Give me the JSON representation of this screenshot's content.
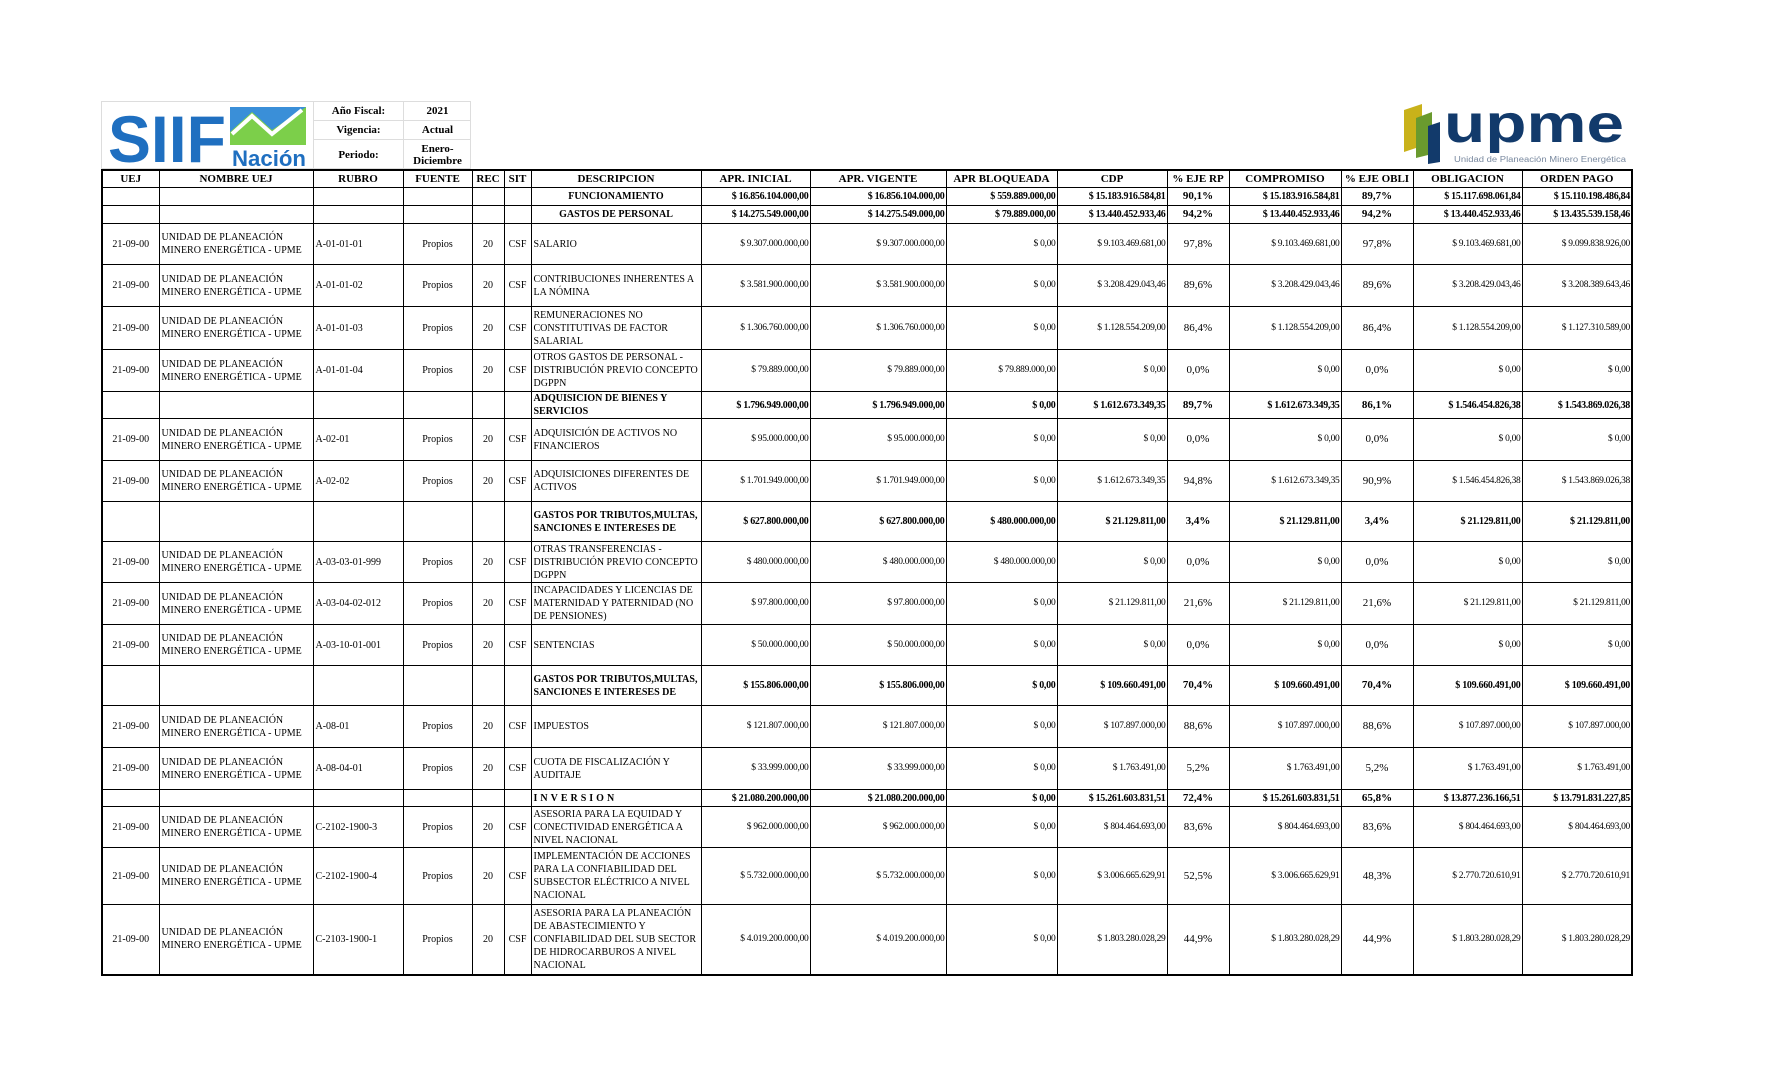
{
  "header": {
    "siif_logo_text": "SIIF Nación",
    "upme_logo_text": "upme",
    "upme_logo_subtitle": "Unidad de Planeación Minero Energética",
    "fields": [
      {
        "label": "Año Fiscal:",
        "value": "2021"
      },
      {
        "label": "Vigencia:",
        "value": "Actual"
      },
      {
        "label": "Periodo:",
        "value": "Enero-Diciembre"
      }
    ],
    "colors": {
      "siif_blue": "#1f6fc0",
      "siif_green": "#5fbf3a",
      "upme_navy": "#123a6b",
      "upme_yellow": "#c9b21a",
      "upme_green": "#6a9a2e"
    }
  },
  "columns": [
    "UEJ",
    "NOMBRE UEJ",
    "RUBRO",
    "FUENTE",
    "REC",
    "SIT",
    "DESCRIPCION",
    "APR. INICIAL",
    "APR. VIGENTE",
    "APR BLOQUEADA",
    "CDP",
    "% EJE RP",
    "COMPROMISO",
    "% EJE OBLI",
    "OBLIGACION",
    "ORDEN PAGO"
  ],
  "rows": [
    {
      "type": "total",
      "center": true,
      "cells": [
        "",
        "",
        "",
        "",
        "",
        "",
        "FUNCIONAMIENTO",
        "$ 16.856.104.000,00",
        "$ 16.856.104.000,00",
        "$ 559.889.000,00",
        "$ 15.183.916.584,81",
        "90,1%",
        "$ 15.183.916.584,81",
        "89,7%",
        "$ 15.117.698.061,84",
        "$ 15.110.198.486,84"
      ]
    },
    {
      "type": "total",
      "center": true,
      "cells": [
        "",
        "",
        "",
        "",
        "",
        "",
        "GASTOS DE PERSONAL",
        "$ 14.275.549.000,00",
        "$ 14.275.549.000,00",
        "$ 79.889.000,00",
        "$ 13.440.452.933,46",
        "94,2%",
        "$ 13.440.452.933,46",
        "94,2%",
        "$ 13.440.452.933,46",
        "$ 13.435.539.158,46"
      ]
    },
    {
      "type": "item",
      "cells": [
        "21-09-00",
        "UNIDAD DE PLANEACIÓN MINERO ENERGÉTICA - UPME",
        "A-01-01-01",
        "Propios",
        "20",
        "CSF",
        "SALARIO",
        "$ 9.307.000.000,00",
        "$ 9.307.000.000,00",
        "$ 0,00",
        "$ 9.103.469.681,00",
        "97,8%",
        "$ 9.103.469.681,00",
        "97,8%",
        "$ 9.103.469.681,00",
        "$ 9.099.838.926,00"
      ]
    },
    {
      "type": "item",
      "cells": [
        "21-09-00",
        "UNIDAD DE PLANEACIÓN MINERO ENERGÉTICA - UPME",
        "A-01-01-02",
        "Propios",
        "20",
        "CSF",
        "CONTRIBUCIONES INHERENTES A LA NÓMINA",
        "$ 3.581.900.000,00",
        "$ 3.581.900.000,00",
        "$ 0,00",
        "$ 3.208.429.043,46",
        "89,6%",
        "$ 3.208.429.043,46",
        "89,6%",
        "$ 3.208.429.043,46",
        "$ 3.208.389.643,46"
      ]
    },
    {
      "type": "item",
      "cells": [
        "21-09-00",
        "UNIDAD DE PLANEACIÓN MINERO ENERGÉTICA - UPME",
        "A-01-01-03",
        "Propios",
        "20",
        "CSF",
        "REMUNERACIONES NO CONSTITUTIVAS DE FACTOR SALARIAL",
        "$ 1.306.760.000,00",
        "$ 1.306.760.000,00",
        "$ 0,00",
        "$ 1.128.554.209,00",
        "86,4%",
        "$ 1.128.554.209,00",
        "86,4%",
        "$ 1.128.554.209,00",
        "$ 1.127.310.589,00"
      ]
    },
    {
      "type": "item",
      "cells": [
        "21-09-00",
        "UNIDAD DE PLANEACIÓN MINERO ENERGÉTICA - UPME",
        "A-01-01-04",
        "Propios",
        "20",
        "CSF",
        "OTROS GASTOS DE PERSONAL - DISTRIBUCIÓN PREVIO CONCEPTO DGPPN",
        "$ 79.889.000,00",
        "$ 79.889.000,00",
        "$ 79.889.000,00",
        "$ 0,00",
        "0,0%",
        "$ 0,00",
        "0,0%",
        "$ 0,00",
        "$ 0,00"
      ]
    },
    {
      "type": "total",
      "cells": [
        "",
        "",
        "",
        "",
        "",
        "",
        "ADQUISICION DE BIENES Y SERVICIOS",
        "$ 1.796.949.000,00",
        "$ 1.796.949.000,00",
        "$ 0,00",
        "$ 1.612.673.349,35",
        "89,7%",
        "$ 1.612.673.349,35",
        "86,1%",
        "$ 1.546.454.826,38",
        "$ 1.543.869.026,38"
      ]
    },
    {
      "type": "item",
      "cells": [
        "21-09-00",
        "UNIDAD DE PLANEACIÓN MINERO ENERGÉTICA - UPME",
        "A-02-01",
        "Propios",
        "20",
        "CSF",
        "ADQUISICIÓN DE ACTIVOS NO FINANCIEROS",
        "$ 95.000.000,00",
        "$ 95.000.000,00",
        "$ 0,00",
        "$ 0,00",
        "0,0%",
        "$ 0,00",
        "0,0%",
        "$ 0,00",
        "$ 0,00"
      ]
    },
    {
      "type": "item",
      "cells": [
        "21-09-00",
        "UNIDAD DE PLANEACIÓN MINERO ENERGÉTICA - UPME",
        "A-02-02",
        "Propios",
        "20",
        "CSF",
        "ADQUISICIONES DIFERENTES DE ACTIVOS",
        "$ 1.701.949.000,00",
        "$ 1.701.949.000,00",
        "$ 0,00",
        "$ 1.612.673.349,35",
        "94,8%",
        "$ 1.612.673.349,35",
        "90,9%",
        "$ 1.546.454.826,38",
        "$ 1.543.869.026,38"
      ]
    },
    {
      "type": "total",
      "cells": [
        "",
        "",
        "",
        "",
        "",
        "",
        "GASTOS POR TRIBUTOS,MULTAS, SANCIONES E INTERESES DE",
        "$ 627.800.000,00",
        "$ 627.800.000,00",
        "$ 480.000.000,00",
        "$ 21.129.811,00",
        "3,4%",
        "$ 21.129.811,00",
        "3,4%",
        "$ 21.129.811,00",
        "$ 21.129.811,00"
      ]
    },
    {
      "type": "item",
      "cells": [
        "21-09-00",
        "UNIDAD DE PLANEACIÓN MINERO ENERGÉTICA - UPME",
        "A-03-03-01-999",
        "Propios",
        "20",
        "CSF",
        "OTRAS TRANSFERENCIAS - DISTRIBUCIÓN PREVIO CONCEPTO DGPPN",
        "$ 480.000.000,00",
        "$ 480.000.000,00",
        "$ 480.000.000,00",
        "$ 0,00",
        "0,0%",
        "$ 0,00",
        "0,0%",
        "$ 0,00",
        "$ 0,00"
      ]
    },
    {
      "type": "item",
      "cells": [
        "21-09-00",
        "UNIDAD DE PLANEACIÓN MINERO ENERGÉTICA - UPME",
        "A-03-04-02-012",
        "Propios",
        "20",
        "CSF",
        "INCAPACIDADES Y LICENCIAS DE MATERNIDAD Y PATERNIDAD (NO DE PENSIONES)",
        "$ 97.800.000,00",
        "$ 97.800.000,00",
        "$ 0,00",
        "$ 21.129.811,00",
        "21,6%",
        "$ 21.129.811,00",
        "21,6%",
        "$ 21.129.811,00",
        "$ 21.129.811,00"
      ]
    },
    {
      "type": "item",
      "cells": [
        "21-09-00",
        "UNIDAD DE PLANEACIÓN MINERO ENERGÉTICA - UPME",
        "A-03-10-01-001",
        "Propios",
        "20",
        "CSF",
        "SENTENCIAS",
        "$ 50.000.000,00",
        "$ 50.000.000,00",
        "$ 0,00",
        "$ 0,00",
        "0,0%",
        "$ 0,00",
        "0,0%",
        "$ 0,00",
        "$ 0,00"
      ]
    },
    {
      "type": "total",
      "cells": [
        "",
        "",
        "",
        "",
        "",
        "",
        "GASTOS POR TRIBUTOS,MULTAS, SANCIONES E INTERESES DE",
        "$ 155.806.000,00",
        "$ 155.806.000,00",
        "$ 0,00",
        "$ 109.660.491,00",
        "70,4%",
        "$ 109.660.491,00",
        "70,4%",
        "$ 109.660.491,00",
        "$ 109.660.491,00"
      ]
    },
    {
      "type": "item",
      "cells": [
        "21-09-00",
        "UNIDAD DE PLANEACIÓN MINERO ENERGÉTICA - UPME",
        "A-08-01",
        "Propios",
        "20",
        "CSF",
        "IMPUESTOS",
        "$ 121.807.000,00",
        "$ 121.807.000,00",
        "$ 0,00",
        "$ 107.897.000,00",
        "88,6%",
        "$ 107.897.000,00",
        "88,6%",
        "$ 107.897.000,00",
        "$ 107.897.000,00"
      ]
    },
    {
      "type": "item",
      "cells": [
        "21-09-00",
        "UNIDAD DE PLANEACIÓN MINERO ENERGÉTICA - UPME",
        "A-08-04-01",
        "Propios",
        "20",
        "CSF",
        "CUOTA DE FISCALIZACIÓN Y AUDITAJE",
        "$ 33.999.000,00",
        "$ 33.999.000,00",
        "$ 0,00",
        "$ 1.763.491,00",
        "5,2%",
        "$ 1.763.491,00",
        "5,2%",
        "$ 1.763.491,00",
        "$ 1.763.491,00"
      ]
    },
    {
      "type": "total",
      "spaced": true,
      "cells": [
        "",
        "",
        "",
        "",
        "",
        "",
        "INVERSION",
        "$ 21.080.200.000,00",
        "$ 21.080.200.000,00",
        "$ 0,00",
        "$ 15.261.603.831,51",
        "72,4%",
        "$ 15.261.603.831,51",
        "65,8%",
        "$ 13.877.236.166,51",
        "$ 13.791.831.227,85"
      ]
    },
    {
      "type": "item",
      "cells": [
        "21-09-00",
        "UNIDAD DE PLANEACIÓN MINERO ENERGÉTICA - UPME",
        "C-2102-1900-3",
        "Propios",
        "20",
        "CSF",
        "ASESORIA PARA LA EQUIDAD Y CONECTIVIDAD ENERGÉTICA A NIVEL  NACIONAL",
        "$ 962.000.000,00",
        "$ 962.000.000,00",
        "$ 0,00",
        "$ 804.464.693,00",
        "83,6%",
        "$ 804.464.693,00",
        "83,6%",
        "$ 804.464.693,00",
        "$ 804.464.693,00"
      ]
    },
    {
      "type": "item",
      "cells": [
        "21-09-00",
        "UNIDAD DE PLANEACIÓN MINERO ENERGÉTICA - UPME",
        "C-2102-1900-4",
        "Propios",
        "20",
        "CSF",
        "IMPLEMENTACIÓN DE ACCIONES PARA LA CONFIABILIDAD DEL SUBSECTOR ELÉCTRICO A NIVEL  NACIONAL",
        "$ 5.732.000.000,00",
        "$ 5.732.000.000,00",
        "$ 0,00",
        "$ 3.006.665.629,91",
        "52,5%",
        "$ 3.006.665.629,91",
        "48,3%",
        "$ 2.770.720.610,91",
        "$ 2.770.720.610,91"
      ]
    },
    {
      "type": "item",
      "cells": [
        "21-09-00",
        "UNIDAD DE PLANEACIÓN MINERO ENERGÉTICA - UPME",
        "C-2103-1900-1",
        "Propios",
        "20",
        "CSF",
        "ASESORIA PARA LA PLANEACIÓN DE ABASTECIMIENTO Y CONFIABILIDAD DEL SUB SECTOR DE HIDROCARBUROS A NIVEL  NACIONAL",
        "$ 4.019.200.000,00",
        "$ 4.019.200.000,00",
        "$ 0,00",
        "$ 1.803.280.028,29",
        "44,9%",
        "$ 1.803.280.028,29",
        "44,9%",
        "$ 1.803.280.028,29",
        "$ 1.803.280.028,29"
      ]
    }
  ]
}
